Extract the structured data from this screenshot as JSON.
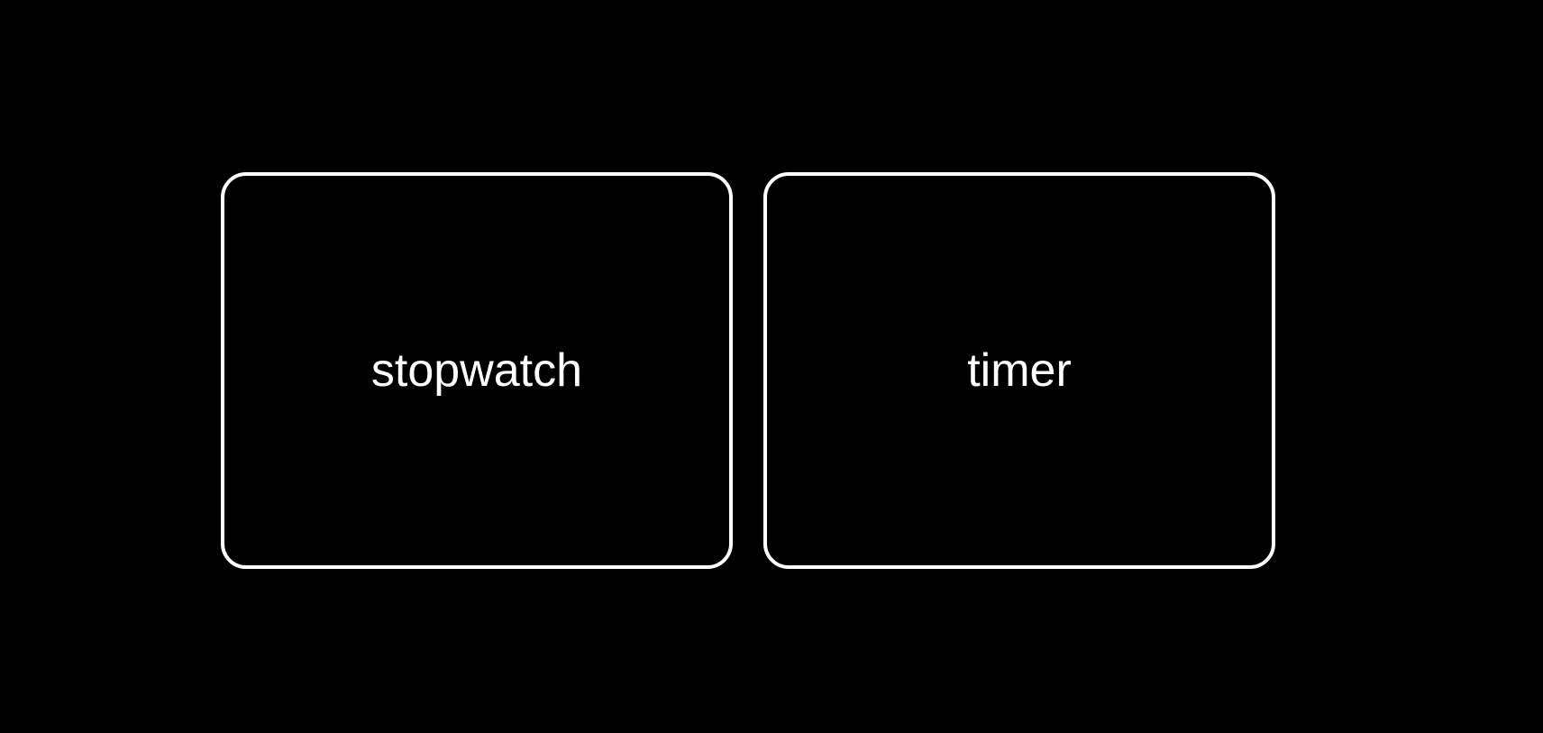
{
  "theme": {
    "background": "#000000",
    "foreground": "#ffffff"
  },
  "modes": {
    "stopwatch_label": "stopwatch",
    "timer_label": "timer"
  }
}
